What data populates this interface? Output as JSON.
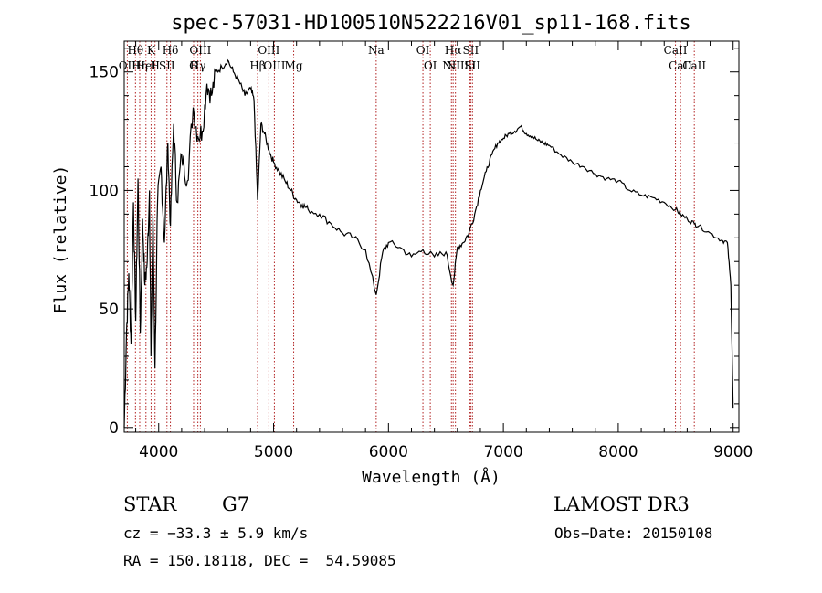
{
  "chart_data": {
    "type": "line",
    "title": "spec-57031-HD100510N522216V01_sp11-168.fits",
    "xlabel": "Wavelength (Å)",
    "ylabel": "Flux (relative)",
    "xlim": [
      3700,
      9050
    ],
    "ylim": [
      -2,
      163
    ],
    "xticks": [
      4000,
      5000,
      6000,
      7000,
      8000,
      9000
    ],
    "yticks": [
      0,
      50,
      100,
      150
    ],
    "series": [
      {
        "name": "spectrum",
        "x": [
          3700,
          3720,
          3740,
          3760,
          3780,
          3800,
          3820,
          3840,
          3860,
          3880,
          3900,
          3920,
          3933,
          3950,
          3968,
          3990,
          4020,
          4050,
          4080,
          4102,
          4130,
          4160,
          4200,
          4250,
          4300,
          4340,
          4380,
          4420,
          4460,
          4500,
          4550,
          4600,
          4650,
          4700,
          4750,
          4800,
          4830,
          4861,
          4890,
          4920,
          4960,
          5000,
          5050,
          5100,
          5150,
          5200,
          5250,
          5300,
          5400,
          5500,
          5600,
          5700,
          5800,
          5893,
          5950,
          6000,
          6100,
          6200,
          6300,
          6400,
          6500,
          6563,
          6600,
          6650,
          6700,
          6750,
          6800,
          6850,
          6900,
          6950,
          7000,
          7050,
          7100,
          7150,
          7200,
          7250,
          7300,
          7350,
          7400,
          7500,
          7600,
          7700,
          7800,
          7900,
          8000,
          8100,
          8200,
          8300,
          8400,
          8500,
          8542,
          8600,
          8662,
          8700,
          8800,
          8900,
          8950,
          8980,
          9000
        ],
        "y": [
          0,
          40,
          65,
          35,
          95,
          45,
          105,
          40,
          88,
          60,
          70,
          100,
          30,
          90,
          25,
          95,
          110,
          78,
          120,
          85,
          128,
          95,
          115,
          104,
          135,
          123,
          125,
          145,
          140,
          150,
          152,
          155,
          150,
          146,
          140,
          143,
          138,
          96,
          128,
          124,
          117,
          112,
          108,
          104,
          100,
          96,
          94,
          92,
          90,
          86,
          82,
          80,
          75,
          56,
          74,
          78,
          76,
          72,
          75,
          72,
          74,
          60,
          76,
          78,
          82,
          90,
          100,
          108,
          115,
          120,
          122,
          124,
          125,
          127,
          124,
          123,
          121,
          120,
          119,
          115,
          112,
          110,
          107,
          105,
          104,
          100,
          98,
          97,
          95,
          92,
          90,
          88,
          86,
          85,
          82,
          79,
          78,
          60,
          8
        ],
        "color": "#000000"
      }
    ],
    "spectral_lines": [
      {
        "label": "OII",
        "wavelength": 3727,
        "row": 1
      },
      {
        "label": "Hθ",
        "wavelength": 3798,
        "row": 0
      },
      {
        "label": "Hη",
        "wavelength": 3835,
        "row": 1
      },
      {
        "label": "HeI",
        "wavelength": 3889,
        "row": 1
      },
      {
        "label": "K",
        "wavelength": 3934,
        "row": 0
      },
      {
        "label": "H",
        "wavelength": 3968,
        "row": 1
      },
      {
        "label": "SII",
        "wavelength": 4072,
        "row": 1
      },
      {
        "label": "Hδ",
        "wavelength": 4102,
        "row": 0
      },
      {
        "label": "G",
        "wavelength": 4304,
        "row": 1
      },
      {
        "label": "Hγ",
        "wavelength": 4341,
        "row": 1
      },
      {
        "label": "OIII",
        "wavelength": 4363,
        "row": 0
      },
      {
        "label": "Hβ",
        "wavelength": 4861,
        "row": 1
      },
      {
        "label": "OIII",
        "wavelength": 4959,
        "row": 0
      },
      {
        "label": "OIII",
        "wavelength": 5007,
        "row": 1
      },
      {
        "label": "Mg",
        "wavelength": 5175,
        "row": 1
      },
      {
        "label": "Na",
        "wavelength": 5893,
        "row": 0
      },
      {
        "label": "OI",
        "wavelength": 6300,
        "row": 0
      },
      {
        "label": "OI",
        "wavelength": 6364,
        "row": 1
      },
      {
        "label": "NII",
        "wavelength": 6548,
        "row": 1
      },
      {
        "label": "Hα",
        "wavelength": 6563,
        "row": 0
      },
      {
        "label": "NII",
        "wavelength": 6583,
        "row": 1
      },
      {
        "label": "SII",
        "wavelength": 6716,
        "row": 0
      },
      {
        "label": "Li",
        "wavelength": 6708,
        "row": 1
      },
      {
        "label": "SII",
        "wavelength": 6731,
        "row": 1
      },
      {
        "label": "CaII",
        "wavelength": 8498,
        "row": 0
      },
      {
        "label": "CaII",
        "wavelength": 8542,
        "row": 1
      },
      {
        "label": "CaII",
        "wavelength": 8662,
        "row": 1
      }
    ],
    "line_color": "#b22222"
  },
  "info": {
    "class": "STAR",
    "subclass": "G7",
    "survey": "LAMOST DR3",
    "cz": "cz = −33.3 ± 5.9 km/s",
    "obs_date": "Obs−Date: 20150108",
    "coords": "RA = 150.18118, DEC =  54.59085"
  }
}
